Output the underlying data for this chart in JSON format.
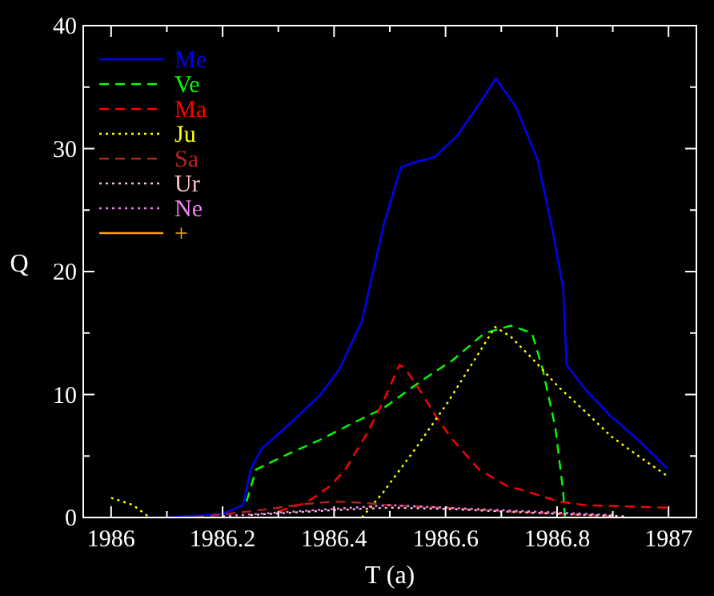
{
  "chart_data": {
    "type": "line",
    "xlabel": "T (a)",
    "ylabel": "Q",
    "xlim": [
      1985.95,
      1987.05
    ],
    "ylim": [
      0,
      40
    ],
    "xticks": [
      1986,
      {
        "value": 1986.1,
        "label": null
      },
      1986.2,
      {
        "value": 1986.3,
        "label": null
      },
      1986.4,
      {
        "value": 1986.5,
        "label": null
      },
      1986.6,
      {
        "value": 1986.7,
        "label": null
      },
      1986.8,
      {
        "value": 1986.9,
        "label": null
      },
      1987
    ],
    "yticks": [
      0,
      {
        "value": 5,
        "label": null
      },
      10,
      {
        "value": 15,
        "label": null
      },
      20,
      {
        "value": 25,
        "label": null
      },
      30,
      {
        "value": 35,
        "label": null
      },
      40
    ],
    "grid": false,
    "legend": "top left",
    "marker": "none",
    "series": [
      {
        "name": "Me",
        "color": "#0000ff",
        "line_style": "solid",
        "x": [
          1986.1,
          1986.2,
          1986.237,
          1986.25,
          1986.27,
          1986.31,
          1986.374,
          1986.41,
          1986.45,
          1986.463,
          1986.489,
          1986.52,
          1986.546,
          1986.58,
          1986.62,
          1986.66,
          1986.69,
          1986.726,
          1986.765,
          1986.794,
          1986.811,
          1986.817,
          1986.851,
          1986.897,
          1986.946,
          1986.997
        ],
        "values": [
          0,
          0.3,
          1,
          3.9,
          5.6,
          7.2,
          9.9,
          12.1,
          16,
          18.6,
          23.8,
          28.5,
          28.9,
          29.3,
          31,
          33.6,
          35.7,
          33.4,
          29.1,
          22.9,
          18.6,
          12.4,
          10.4,
          8.2,
          6.3,
          4
        ]
      },
      {
        "name": "Ve",
        "color": "#00ff00",
        "line_style": "dashed",
        "x": [
          1986.243,
          1986.26,
          1986.31,
          1986.374,
          1986.43,
          1986.489,
          1986.556,
          1986.613,
          1986.67,
          1986.717,
          1986.755,
          1986.774,
          1986.797,
          1986.811,
          1986.814
        ],
        "values": [
          1.3,
          3.9,
          5,
          6.3,
          7.6,
          8.9,
          11.1,
          12.8,
          15,
          15.6,
          15,
          12.1,
          7.3,
          2.1,
          0
        ]
      },
      {
        "name": "Ma",
        "color": "#ff0000",
        "line_style": "dashed",
        "x": [
          1986.3,
          1986.35,
          1986.394,
          1986.42,
          1986.46,
          1986.489,
          1986.517,
          1986.526,
          1986.556,
          1986.583,
          1986.613,
          1986.66,
          1986.709,
          1986.754,
          1986.803,
          1986.851,
          1986.997
        ],
        "values": [
          0.5,
          1.2,
          2.6,
          3.9,
          6.9,
          9.5,
          12.4,
          12.2,
          10.2,
          8.2,
          6.3,
          3.9,
          2.6,
          2,
          1.3,
          1,
          0.8
        ]
      },
      {
        "name": "Ju",
        "color": "#ffff00",
        "line_style": "dotted",
        "x": [
          1986,
          1986.04,
          1986.069,
          1986.25,
          1986.45,
          1986.489,
          1986.546,
          1986.603,
          1986.66,
          1986.689,
          1986.717,
          1986.754,
          1986.803,
          1986.851,
          1986.897,
          1986.946,
          1986.997
        ],
        "values": [
          1.6,
          1,
          0,
          null,
          0,
          2.1,
          5.6,
          9.3,
          13.4,
          15.5,
          14.7,
          13,
          10.6,
          8.6,
          6.6,
          5,
          3.4
        ]
      },
      {
        "name": "Sa",
        "color": "#b22222",
        "line_style": "dashed",
        "x": [
          1986.15,
          1986.25,
          1986.3,
          1986.35,
          1986.4,
          1986.45,
          1986.5,
          1986.6,
          1986.7,
          1986.8,
          1986.9
        ],
        "values": [
          0,
          0.5,
          0.8,
          1.1,
          1.3,
          1.2,
          1,
          0.8,
          0.5,
          0.3,
          0.1
        ]
      },
      {
        "name": "Ur",
        "color": "#ffc0cb",
        "line_style": "dotted",
        "x": [
          1986.25,
          1986.4,
          1986.5,
          1986.6,
          1986.7,
          1986.8,
          1986.92
        ],
        "values": [
          0.2,
          0.6,
          0.8,
          0.7,
          0.5,
          0.3,
          0.1
        ]
      },
      {
        "name": "Ne",
        "color": "#ee82ee",
        "line_style": "dotted",
        "x": [
          1986.2,
          1986.3,
          1986.4,
          1986.5,
          1986.6,
          1986.7,
          1986.8,
          1986.9
        ],
        "values": [
          0.1,
          0.4,
          0.7,
          1,
          0.8,
          0.6,
          0.4,
          0.2
        ]
      },
      {
        "name": "+",
        "color": "#ffa500",
        "line_style": "solid"
      }
    ]
  }
}
